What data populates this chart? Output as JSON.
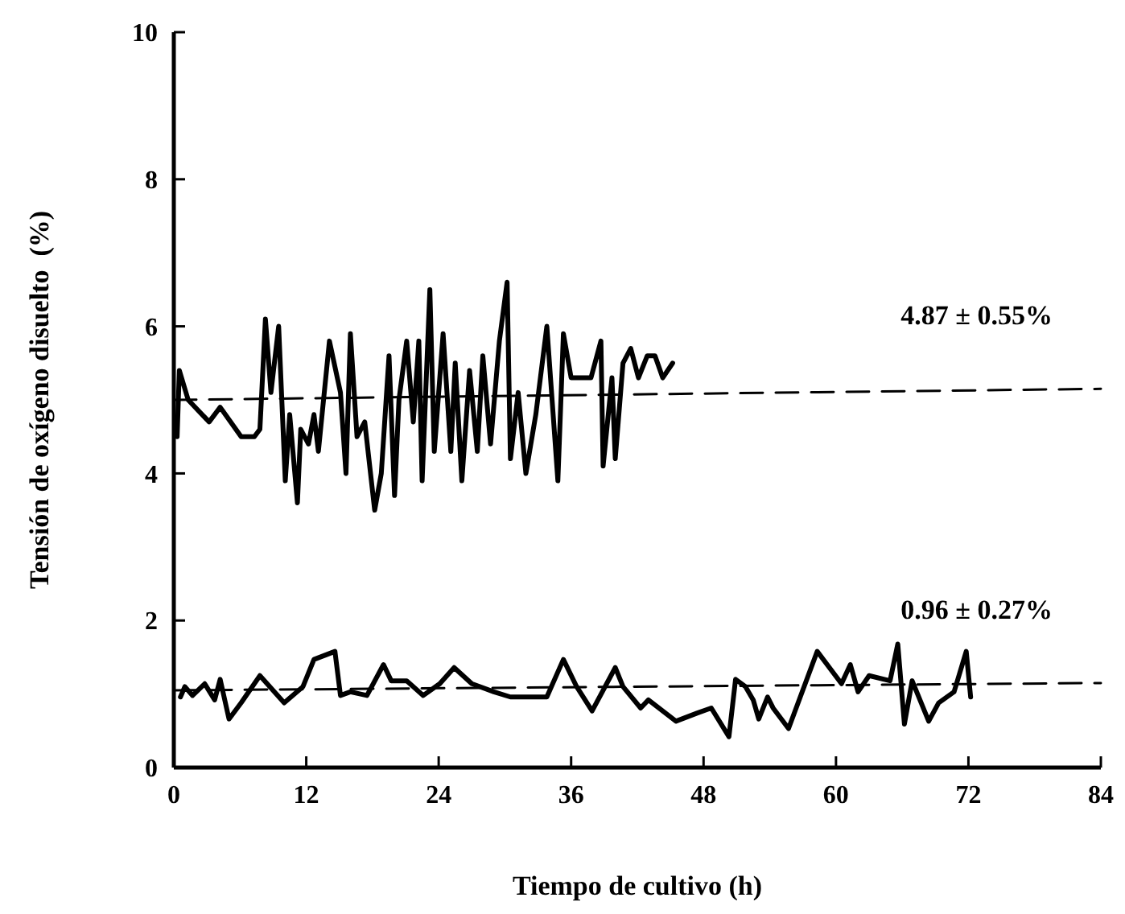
{
  "chart_data": {
    "type": "line",
    "xlabel": "Tiempo de cultivo (h)",
    "ylabel": "Tensión de oxígeno disuelto  (%)",
    "xlim": [
      0,
      84
    ],
    "ylim": [
      0,
      10
    ],
    "xticks": [
      0,
      12,
      24,
      36,
      48,
      60,
      72,
      84
    ],
    "yticks": [
      0,
      2,
      4,
      6,
      8,
      10
    ],
    "grid": false,
    "marker": "none",
    "line_style": "solid",
    "series": [
      {
        "color": "#000000",
        "x": [
          0.3,
          0.5,
          1.3,
          3.2,
          4.2,
          6.1,
          7.3,
          7.8,
          8.3,
          8.8,
          9.5,
          10.1,
          10.5,
          11.2,
          11.5,
          12.2,
          12.7,
          13.1,
          14.1,
          15.1,
          15.6,
          16.0,
          16.6,
          17.3,
          18.2,
          18.8,
          19.5,
          20.0,
          20.4,
          21.1,
          21.7,
          22.2,
          22.5,
          23.2,
          23.6,
          24.4,
          25.1,
          25.5,
          26.1,
          26.8,
          27.5,
          28.0,
          28.7,
          29.5,
          30.2,
          30.5,
          31.2,
          31.9,
          32.8,
          33.8,
          34.8,
          35.3,
          36.0,
          36.7,
          37.8,
          38.7,
          38.9,
          39.7,
          40.0,
          40.7,
          41.4,
          42.1,
          42.9,
          43.6,
          44.3,
          45.2
        ],
        "values": [
          4.5,
          5.4,
          5.0,
          4.7,
          4.9,
          4.5,
          4.5,
          4.6,
          6.1,
          5.1,
          6.0,
          3.9,
          4.8,
          3.6,
          4.6,
          4.4,
          4.8,
          4.3,
          5.8,
          5.1,
          4.0,
          5.9,
          4.5,
          4.7,
          3.5,
          4.0,
          5.6,
          3.7,
          5.0,
          5.8,
          4.7,
          5.8,
          3.9,
          6.5,
          4.3,
          5.9,
          4.3,
          5.5,
          3.9,
          5.4,
          4.3,
          5.6,
          4.4,
          5.8,
          6.6,
          4.2,
          5.1,
          4.0,
          4.8,
          6.0,
          3.9,
          5.9,
          5.3,
          5.3,
          5.3,
          5.8,
          4.1,
          5.3,
          4.2,
          5.5,
          5.7,
          5.3,
          5.6,
          5.6,
          5.3,
          5.5
        ]
      },
      {
        "color": "#000000",
        "x": [
          0.6,
          1.0,
          1.7,
          2.8,
          3.7,
          4.2,
          5.0,
          6.1,
          7.8,
          10.0,
          11.7,
          12.7,
          14.6,
          15.1,
          16.0,
          17.5,
          19.0,
          19.7,
          21.1,
          22.6,
          24.1,
          25.4,
          27.0,
          29.0,
          30.5,
          33.8,
          35.3,
          36.5,
          37.9,
          40.0,
          40.7,
          42.3,
          43.0,
          45.5,
          47.4,
          48.7,
          50.3,
          50.9,
          51.8,
          52.5,
          53.0,
          53.8,
          54.3,
          55.7,
          58.3,
          60.5,
          61.3,
          62.0,
          63.0,
          64.9,
          65.6,
          66.2,
          66.9,
          68.4,
          69.3,
          70.7,
          71.8,
          72.2
        ],
        "values": [
          0.96,
          1.1,
          0.98,
          1.14,
          0.92,
          1.2,
          0.66,
          0.88,
          1.25,
          0.88,
          1.1,
          1.47,
          1.58,
          0.98,
          1.03,
          0.98,
          1.4,
          1.18,
          1.18,
          0.98,
          1.14,
          1.36,
          1.14,
          1.03,
          0.96,
          0.96,
          1.47,
          1.1,
          0.77,
          1.36,
          1.1,
          0.81,
          0.92,
          0.63,
          0.74,
          0.81,
          0.42,
          1.2,
          1.1,
          0.92,
          0.66,
          0.96,
          0.81,
          0.53,
          1.58,
          1.14,
          1.4,
          1.03,
          1.25,
          1.18,
          1.68,
          0.59,
          1.18,
          0.63,
          0.88,
          1.03,
          1.58,
          0.96
        ]
      },
      {
        "color": "#000000",
        "line_style": "dashed",
        "x": [
          0,
          84
        ],
        "values": [
          5.0,
          5.15
        ]
      },
      {
        "color": "#000000",
        "line_style": "dashed",
        "x": [
          0,
          84
        ],
        "values": [
          1.05,
          1.15
        ]
      }
    ],
    "annotations": [
      "4.87 ± 0.55%",
      "0.96 ± 0.27%"
    ]
  }
}
